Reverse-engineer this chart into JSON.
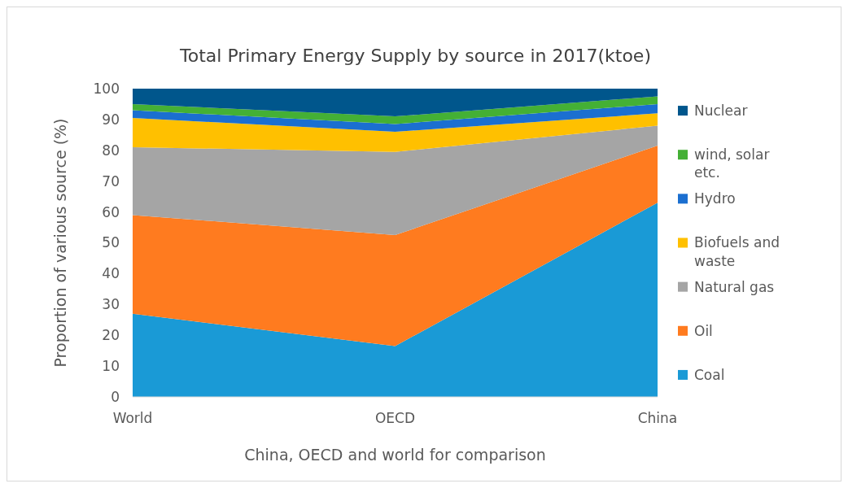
{
  "chart_data": {
    "type": "area",
    "stacked": true,
    "title": "Total Primary Energy Supply by source in 2017(ktoe)",
    "xlabel": "China, OECD and world for comparison",
    "ylabel": "Proportion of various source (%)",
    "categories": [
      "World",
      "OECD",
      "China"
    ],
    "ylim": [
      0,
      100
    ],
    "yticks": [
      0,
      10,
      20,
      30,
      40,
      50,
      60,
      70,
      80,
      90,
      100
    ],
    "grid": false,
    "legend": "right",
    "series": [
      {
        "name": "Coal",
        "color": "#1a9ad6",
        "values": [
          27,
          16.5,
          63
        ]
      },
      {
        "name": "Oil",
        "color": "#ff7b1f",
        "values": [
          32,
          36,
          18.5
        ]
      },
      {
        "name": "Natural gas",
        "color": "#a5a5a5",
        "values": [
          22,
          27,
          6.5
        ]
      },
      {
        "name": "Biofuels and waste",
        "color": "#ffc000",
        "values": [
          9.5,
          6.5,
          4
        ]
      },
      {
        "name": "Hydro",
        "color": "#1b6fd0",
        "values": [
          2.5,
          2.5,
          3
        ]
      },
      {
        "name": "wind, solar etc.",
        "color": "#44b035",
        "values": [
          2,
          2.5,
          2.5
        ]
      },
      {
        "name": "Nuclear",
        "color": "#00568c",
        "values": [
          5,
          9,
          2.5
        ]
      }
    ]
  }
}
